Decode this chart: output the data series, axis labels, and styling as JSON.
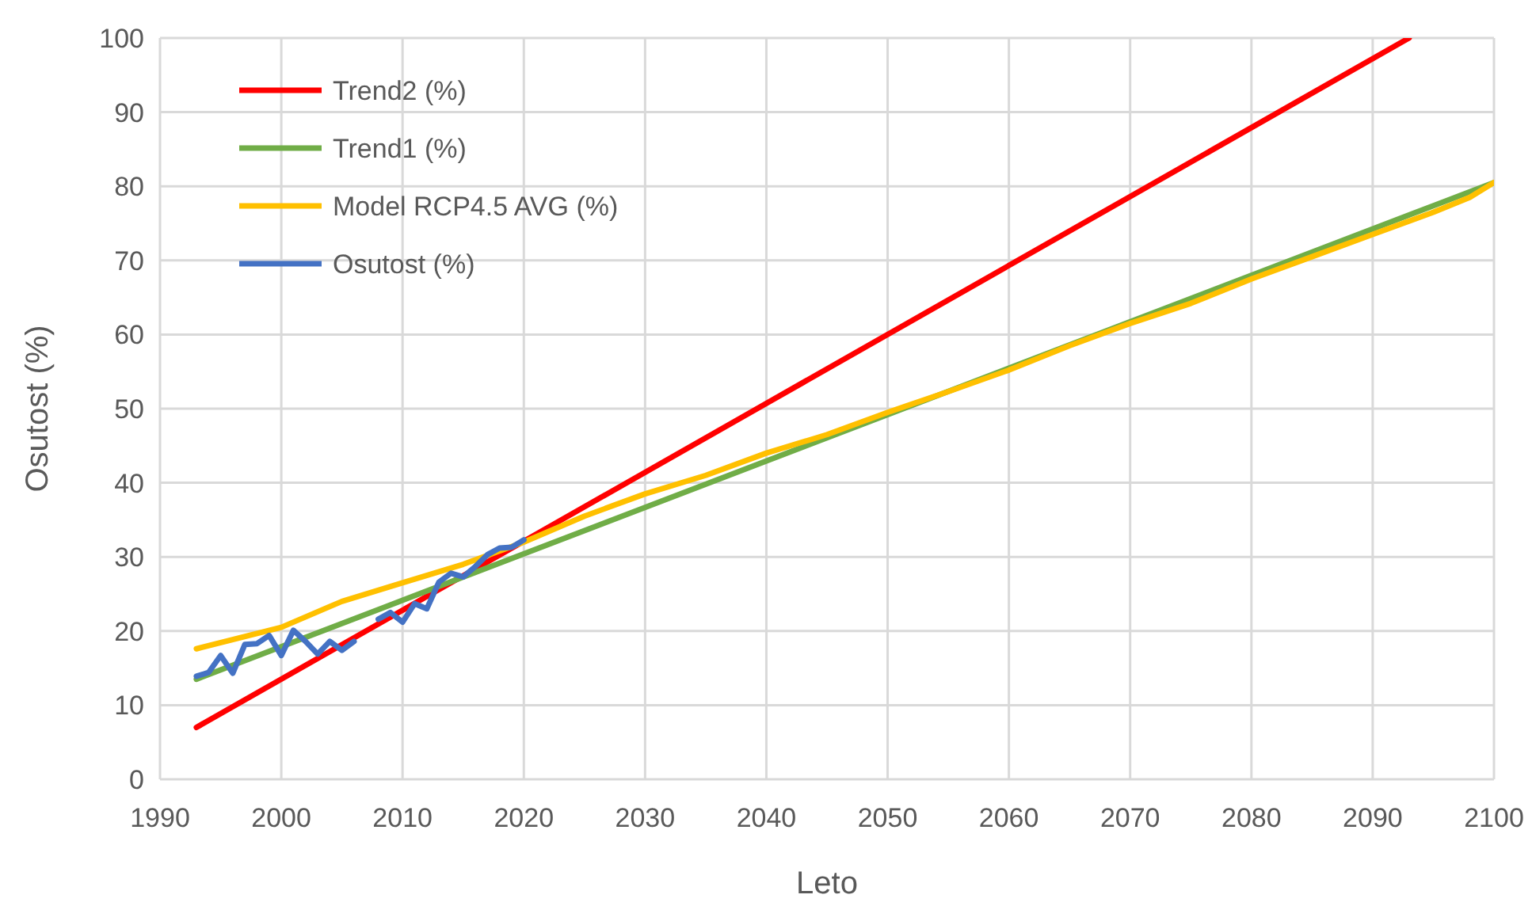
{
  "chart_data": {
    "type": "line",
    "xlabel": "Leto",
    "ylabel": "Osutost (%)",
    "xlim": [
      1990,
      2100
    ],
    "xticks": [
      1990,
      2000,
      2010,
      2020,
      2030,
      2040,
      2050,
      2060,
      2070,
      2080,
      2090,
      2100
    ],
    "ylim": [
      0,
      100
    ],
    "yticks": [
      0,
      10,
      20,
      30,
      40,
      50,
      60,
      70,
      80,
      90,
      100
    ],
    "grid": true,
    "legend": "top left",
    "marker": "none",
    "line_style": "solid",
    "series": [
      {
        "name": "Trend2 (%)",
        "color": "#ff0000",
        "x": [
          1993,
          2093
        ],
        "values": [
          7,
          100
        ]
      },
      {
        "name": "Trend1 (%)",
        "color": "#70ad47",
        "x": [
          1993,
          2100
        ],
        "values": [
          13.5,
          80.5
        ]
      },
      {
        "name": "Model RCP4.5 AVG (%)",
        "color": "#ffc000",
        "x": [
          1993,
          2000,
          2005,
          2010,
          2015,
          2020,
          2025,
          2030,
          2035,
          2040,
          2045,
          2050,
          2055,
          2060,
          2065,
          2070,
          2075,
          2080,
          2085,
          2090,
          2095,
          2098,
          2100
        ],
        "values": [
          17.6,
          20.5,
          24,
          26.5,
          29,
          32,
          35.5,
          38.5,
          41,
          44,
          46.5,
          49.5,
          52.3,
          55.2,
          58.5,
          61.5,
          64.2,
          67.5,
          70.5,
          73.5,
          76.5,
          78.5,
          80.5
        ]
      },
      {
        "name": "Osutost (%)",
        "color": "#4472c4",
        "x": [
          1993,
          1994,
          1995,
          1996,
          1997,
          1998,
          1999,
          2000,
          2001,
          2002,
          2003,
          2004,
          2005,
          2006,
          2007,
          2008,
          2009,
          2010,
          2011,
          2012,
          2013,
          2014,
          2015,
          2016,
          2017,
          2018,
          2019,
          2020
        ],
        "values": [
          13.9,
          14.4,
          16.7,
          14.3,
          18.2,
          18.3,
          19.4,
          16.7,
          20.1,
          18.6,
          16.9,
          18.6,
          17.4,
          18.6,
          null,
          21.6,
          22.5,
          21.2,
          23.7,
          23,
          26.6,
          27.8,
          27.3,
          28.7,
          30.3,
          31.2,
          31.3,
          32.3
        ]
      }
    ]
  }
}
